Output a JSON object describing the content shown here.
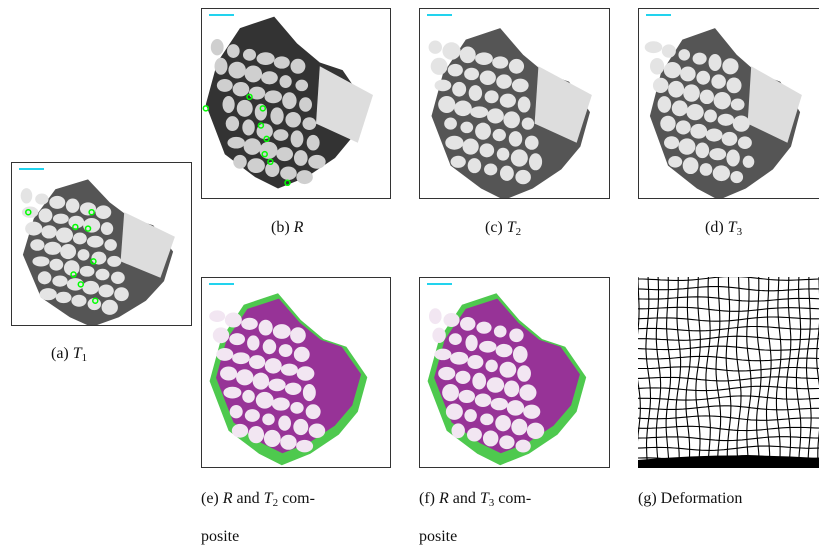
{
  "panels": [
    {
      "caption": [
        {
          "text": "(a) "
        },
        {
          "italic": "T"
        },
        {
          "sub": "1"
        }
      ]
    },
    {
      "caption": [
        {
          "text": "(b) "
        },
        {
          "italic": "R"
        }
      ]
    },
    {
      "caption": [
        {
          "text": "(c) "
        },
        {
          "italic": "T"
        },
        {
          "sub": "2"
        }
      ]
    },
    {
      "caption": [
        {
          "text": "(d) "
        },
        {
          "italic": "T"
        },
        {
          "sub": "3"
        }
      ]
    },
    {
      "caption": [
        {
          "text": "(e) "
        },
        {
          "italic": "R"
        },
        {
          "text": " and "
        },
        {
          "italic": "T"
        },
        {
          "sub": "2"
        },
        {
          "text": " com-"
        }
      ],
      "caption_cont": "posite"
    },
    {
      "caption": [
        {
          "text": "(f) "
        },
        {
          "italic": "R"
        },
        {
          "text": " and "
        },
        {
          "italic": "T"
        },
        {
          "sub": "3"
        },
        {
          "text": " com-"
        }
      ],
      "caption_cont": "posite"
    },
    {
      "caption": [
        {
          "text": "(g) Deformation"
        }
      ]
    }
  ]
}
